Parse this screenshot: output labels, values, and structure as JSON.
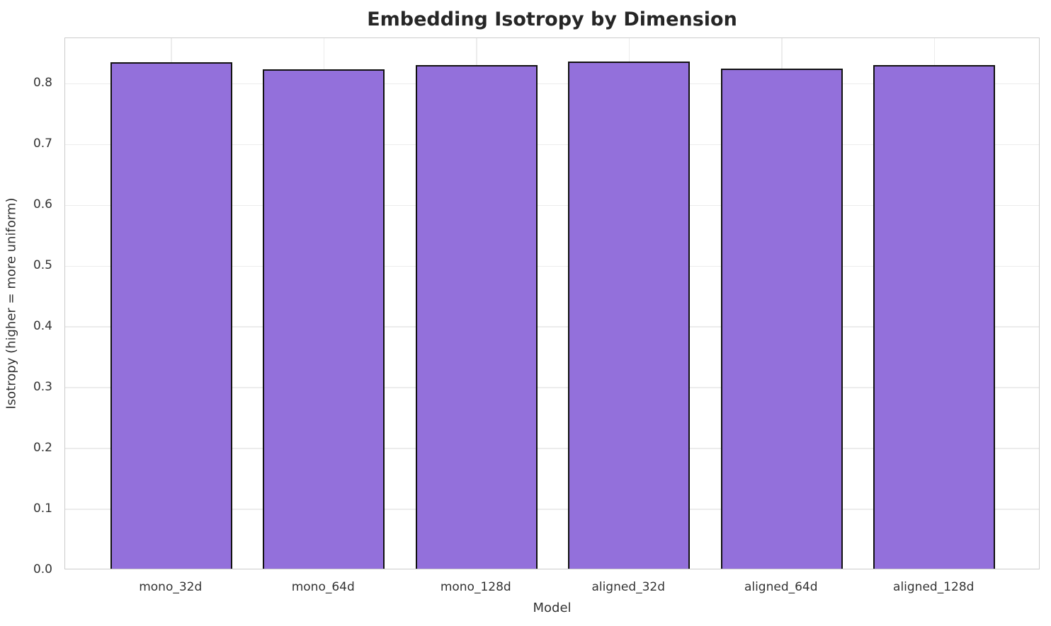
{
  "chart_data": {
    "type": "bar",
    "title": "Embedding Isotropy by Dimension",
    "xlabel": "Model",
    "ylabel": "Isotropy (higher = more uniform)",
    "categories": [
      "mono_32d",
      "mono_64d",
      "mono_128d",
      "aligned_32d",
      "aligned_64d",
      "aligned_128d"
    ],
    "values": [
      0.833,
      0.822,
      0.828,
      0.834,
      0.823,
      0.829
    ],
    "ytick_labels": [
      "0.0",
      "0.1",
      "0.2",
      "0.3",
      "0.4",
      "0.5",
      "0.6",
      "0.7",
      "0.8"
    ],
    "ylim": [
      0,
      0.875
    ],
    "bar_width_fraction": 0.8,
    "grid": true,
    "legend": "none",
    "colors": {
      "bar_fill": "#9370DB",
      "bar_edge": "#111111",
      "grid": "#ececec",
      "spine": "#cccccc",
      "title_text": "#262626",
      "tick_text": "#333333"
    }
  }
}
